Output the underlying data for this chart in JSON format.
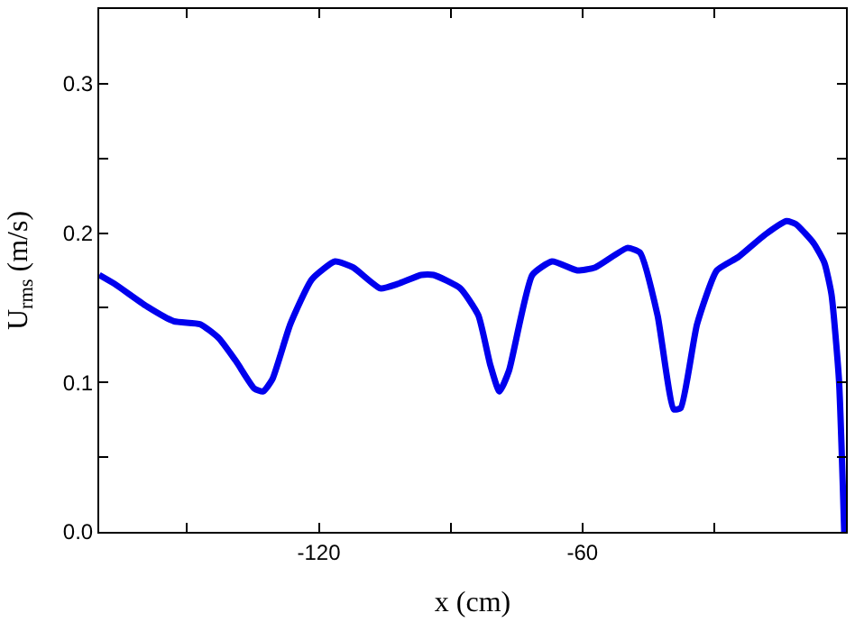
{
  "chart_data": {
    "type": "line",
    "xlabel": "x (cm)",
    "ylabel": "U$_{rms}$ (m/s)",
    "xlim": [
      -170,
      0
    ],
    "ylim": [
      0,
      0.35
    ],
    "xticks": [
      {
        "value": -150,
        "label": null
      },
      -120,
      {
        "value": -90,
        "label": null
      },
      -60,
      {
        "value": -30,
        "label": null
      }
    ],
    "yticks": [
      "0.0",
      {
        "value": 0.05,
        "label": null
      },
      0.1,
      {
        "value": 0.15,
        "label": null
      },
      0.2,
      {
        "value": 0.25,
        "label": null
      },
      0.3
    ],
    "marker": "none",
    "line_style": "solid",
    "series": [
      {
        "color": "#0000ee",
        "x": [
          -170,
          -166.5,
          -159.2,
          -153,
          -147,
          -142.9,
          -138.8,
          -134.7,
          -132.7,
          -130.6,
          -126.5,
          -121.6,
          -116.3,
          -112.2,
          -106,
          -102,
          -96.7,
          -93.9,
          -87.8,
          -83.7,
          -81,
          -78.9,
          -76.7,
          -71.4,
          -66.9,
          -61.2,
          -57.1,
          -49.8,
          -46.9,
          -42.9,
          -39.2,
          -37.6,
          -33.9,
          -29.4,
          -24.5,
          -18.4,
          -13.5,
          -11.4,
          -7.3,
          -4.9,
          -3.3,
          -1.6,
          -0.4
        ],
        "values": [
          0.172,
          0.166,
          0.151,
          0.141,
          0.139,
          0.13,
          0.114,
          0.096,
          0.094,
          0.102,
          0.139,
          0.169,
          0.181,
          0.177,
          0.163,
          0.166,
          0.172,
          0.172,
          0.163,
          0.145,
          0.112,
          0.094,
          0.108,
          0.172,
          0.181,
          0.175,
          0.177,
          0.19,
          0.187,
          0.145,
          0.082,
          0.083,
          0.139,
          0.175,
          0.184,
          0.199,
          0.208,
          0.206,
          0.193,
          0.18,
          0.159,
          0.102,
          0.0
        ]
      }
    ]
  }
}
